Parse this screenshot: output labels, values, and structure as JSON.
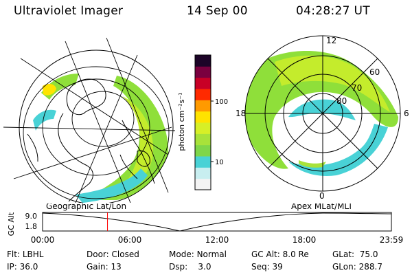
{
  "header": {
    "title": "Ultraviolet Imager",
    "date": "14 Sep 00",
    "time": "04:28:27 UT"
  },
  "left_map": {
    "label": "Geographic Lat/Lon"
  },
  "right_map": {
    "label": "Apex  MLat/MLT",
    "mlt_labels": [
      "12",
      "18",
      "6",
      "0"
    ],
    "lat_labels": [
      "60",
      "70",
      "80"
    ]
  },
  "colorbar": {
    "unit_label": "photon cm⁻²s⁻¹",
    "tick_labels": [
      "100",
      "10"
    ],
    "colors": [
      "#f4f4f4",
      "#c8eef0",
      "#49d2d6",
      "#7fd64a",
      "#a8e23a",
      "#d7ef27",
      "#ffe300",
      "#ff9a00",
      "#ff2a00",
      "#c80026",
      "#7a003f",
      "#1d0428"
    ]
  },
  "timeline": {
    "axis_label": "GC Alt",
    "y_ticks": [
      "9.0",
      "1.8"
    ],
    "x_ticks": [
      "00:00",
      "06:00",
      "12:00",
      "18:00",
      "23:59"
    ],
    "marker_time": "04:28",
    "marker_color": "#ff0000"
  },
  "info": {
    "flt_label": "Flt:",
    "flt_value": "LBHL",
    "ip_label": "IP:",
    "ip_value": "36.0",
    "door_label": "Door:",
    "door_value": "Closed",
    "gain_label": "Gain:",
    "gain_value": "13",
    "mode_label": "Mode:",
    "mode_value": "Normal",
    "dsp_label": "Dsp:",
    "dsp_value": "3.0",
    "gcalt_label": "GC Alt:",
    "gcalt_value": "8.0 Re",
    "seq_label": "Seq:",
    "seq_value": "39",
    "glat_label": "GLat:",
    "glat_value": "75.0",
    "glon_label": "GLon:",
    "glon_value": "288.7"
  }
}
